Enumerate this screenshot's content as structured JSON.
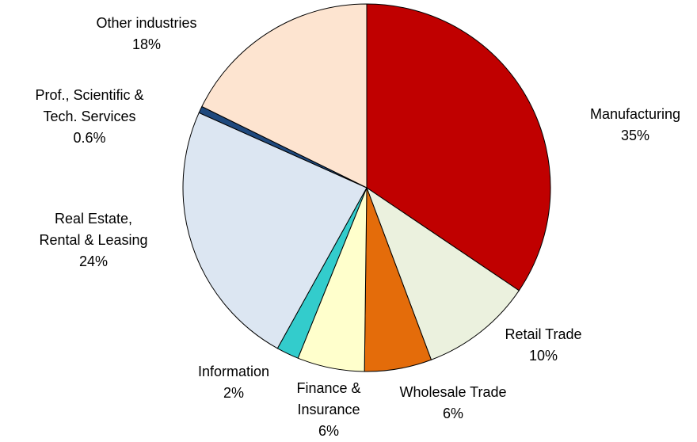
{
  "chart_data": {
    "type": "pie",
    "categories": [
      "Manufacturing",
      "Retail Trade",
      "Wholesale Trade",
      "Finance &\nInsurance",
      "Information",
      "Real Estate,\nRental & Leasing",
      "Prof., Scientific &\nTech. Services",
      "Other industries"
    ],
    "values": [
      35,
      10,
      6,
      6,
      2,
      24,
      0.6,
      18
    ],
    "value_labels": [
      "35%",
      "10%",
      "6%",
      "6%",
      "2%",
      "24%",
      "0.6%",
      "18%"
    ],
    "colors": [
      "#c00000",
      "#ebf1de",
      "#e46c0a",
      "#ffffcc",
      "#33cccc",
      "#dce6f2",
      "#1f497d",
      "#fde4d0"
    ]
  }
}
